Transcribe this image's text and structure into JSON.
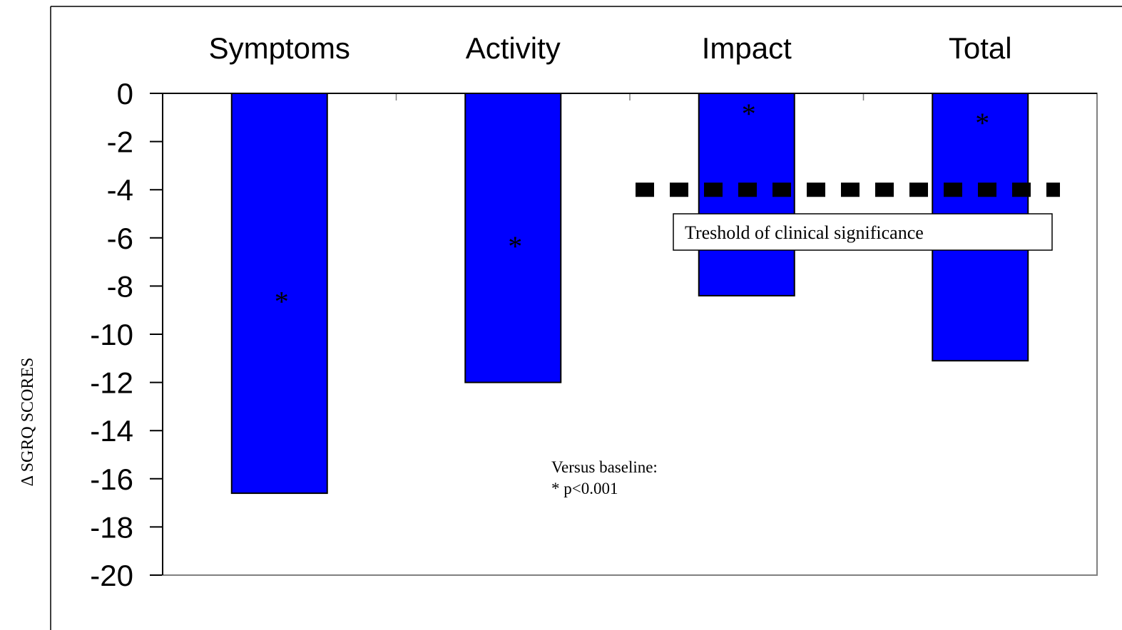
{
  "chart_data": {
    "type": "bar",
    "categories": [
      "Symptoms",
      "Activity",
      "Impact",
      "Total"
    ],
    "values": [
      -16.6,
      -12.0,
      -8.4,
      -11.1
    ],
    "significance_marks": [
      "*",
      "*",
      "*",
      "*"
    ],
    "ylabel": "Δ SGRQ SCORES",
    "ylim": [
      -20,
      0
    ],
    "yticks": [
      0,
      -2,
      -4,
      -6,
      -8,
      -10,
      -12,
      -14,
      -16,
      -18,
      -20
    ],
    "bar_color": "#0000ff",
    "threshold": {
      "value": -4,
      "label": "Treshold of clinical significance",
      "style": "dashed",
      "from_category": "Impact",
      "to_category": "Total"
    },
    "annotation": {
      "line1": "Versus baseline:",
      "line2": "* p<0.001"
    },
    "grid": false
  }
}
